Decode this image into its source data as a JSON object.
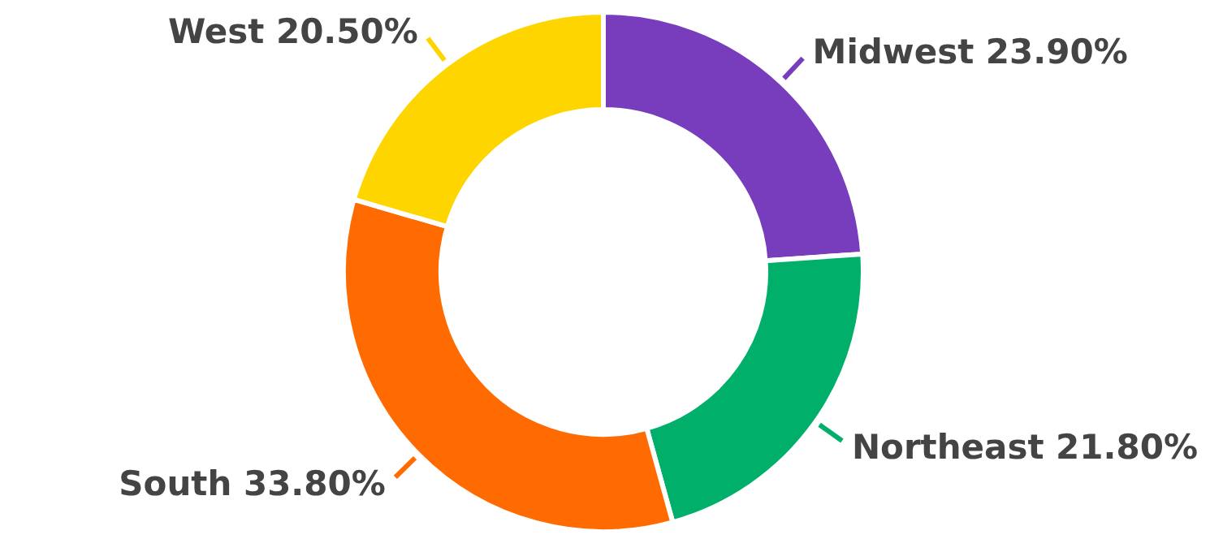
{
  "chart_data": {
    "type": "donut",
    "categories": [
      "Midwest",
      "Northeast",
      "South",
      "West"
    ],
    "values": [
      23.9,
      21.8,
      33.8,
      20.5
    ],
    "value_labels": [
      "23.90%",
      "21.80%",
      "33.80%",
      "20.50%"
    ],
    "colors": [
      "#773dbd",
      "#00b06a",
      "#ff6b00",
      "#ffd500"
    ]
  }
}
